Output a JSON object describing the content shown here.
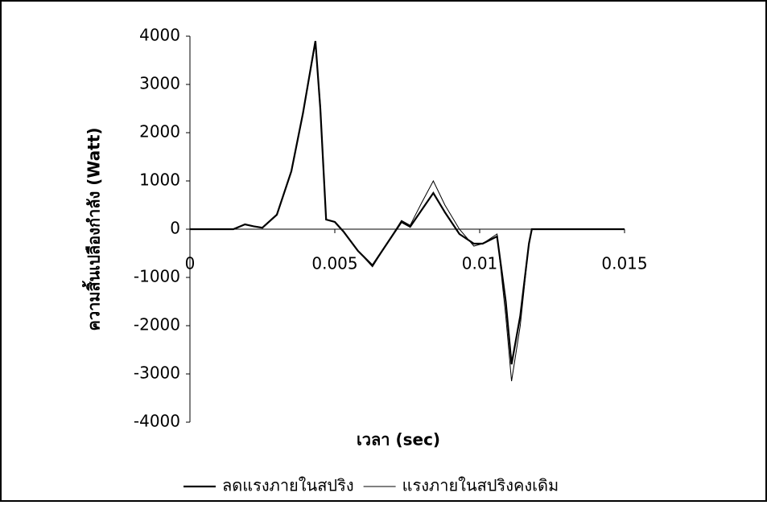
{
  "chart_data": {
    "type": "line",
    "x_label": "เวลา (sec)",
    "y_label": "ความสิ้นเปลืองกำลัง (Watt)",
    "x": [
      0,
      0.0015,
      0.0019,
      0.0022,
      0.0025,
      0.003,
      0.0035,
      0.0039,
      0.00433,
      0.0045,
      0.0047,
      0.005,
      0.0053,
      0.0058,
      0.0063,
      0.0068,
      0.0073,
      0.0076,
      0.008,
      0.0084,
      0.0088,
      0.0093,
      0.0098,
      0.0101,
      0.0106,
      0.0109,
      0.0111,
      0.0114,
      0.0117,
      0.0118,
      0.015
    ],
    "series": [
      {
        "name": "ลดแรงภายในสปริง",
        "color": "#000000",
        "values": [
          0,
          0,
          100,
          60,
          30,
          300,
          1200,
          2400,
          3900,
          2500,
          200,
          150,
          -50,
          -450,
          -750,
          -300,
          150,
          50,
          400,
          750,
          350,
          -100,
          -300,
          -300,
          -150,
          -1500,
          -2800,
          -1800,
          -300,
          0,
          0
        ]
      },
      {
        "name": "แรงภายในสปริงคงเดิม",
        "color": "#000000",
        "values": [
          0,
          0,
          100,
          60,
          30,
          300,
          1200,
          2400,
          3850,
          2600,
          200,
          150,
          -50,
          -450,
          -780,
          -300,
          180,
          80,
          550,
          1000,
          500,
          0,
          -350,
          -300,
          -100,
          -1800,
          -3150,
          -2000,
          -300,
          0,
          0
        ]
      }
    ],
    "xlim": [
      0,
      0.015
    ],
    "xticks": [
      0,
      0.005,
      {
        "value": 0.01,
        "label": "0.01"
      },
      0.015
    ],
    "ylim": [
      -4000,
      4000
    ],
    "yticks": [
      -4000,
      -3000,
      -2000,
      -1000,
      0,
      1000,
      2000,
      3000,
      4000
    ],
    "legend": "bottom"
  }
}
